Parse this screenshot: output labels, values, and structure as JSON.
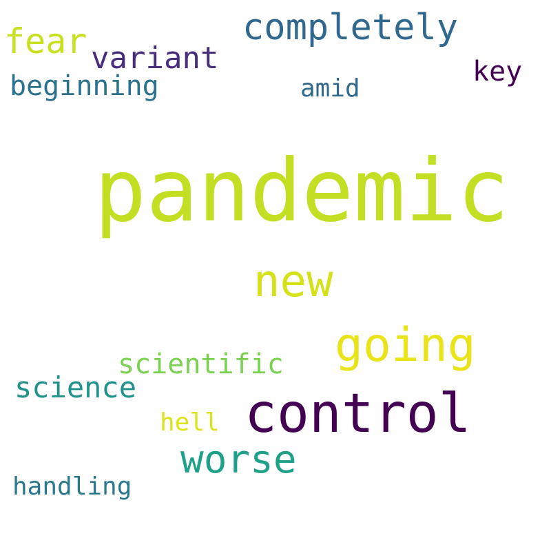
{
  "words": [
    {
      "id": "pandemic",
      "text": "pandemic",
      "color": "#c2df23"
    },
    {
      "id": "control",
      "text": "control",
      "color": "#440154"
    },
    {
      "id": "going",
      "text": "going",
      "color": "#e8e419"
    },
    {
      "id": "new",
      "text": "new",
      "color": "#d5e21a"
    },
    {
      "id": "worse",
      "text": "worse",
      "color": "#1fa088"
    },
    {
      "id": "completely",
      "text": "completely",
      "color": "#31688e"
    },
    {
      "id": "fear",
      "text": "fear",
      "color": "#c8e020"
    },
    {
      "id": "variant",
      "text": "variant",
      "color": "#472d7b"
    },
    {
      "id": "science",
      "text": "science",
      "color": "#21918c"
    },
    {
      "id": "key",
      "text": "key",
      "color": "#440154"
    },
    {
      "id": "beginning",
      "text": "beginning",
      "color": "#2c728e"
    },
    {
      "id": "scientific",
      "text": "scientific",
      "color": "#7ad151"
    },
    {
      "id": "amid",
      "text": "amid",
      "color": "#31688e"
    },
    {
      "id": "handling",
      "text": "handling",
      "color": "#2a788e"
    },
    {
      "id": "hell",
      "text": "hell",
      "color": "#dde318"
    }
  ]
}
